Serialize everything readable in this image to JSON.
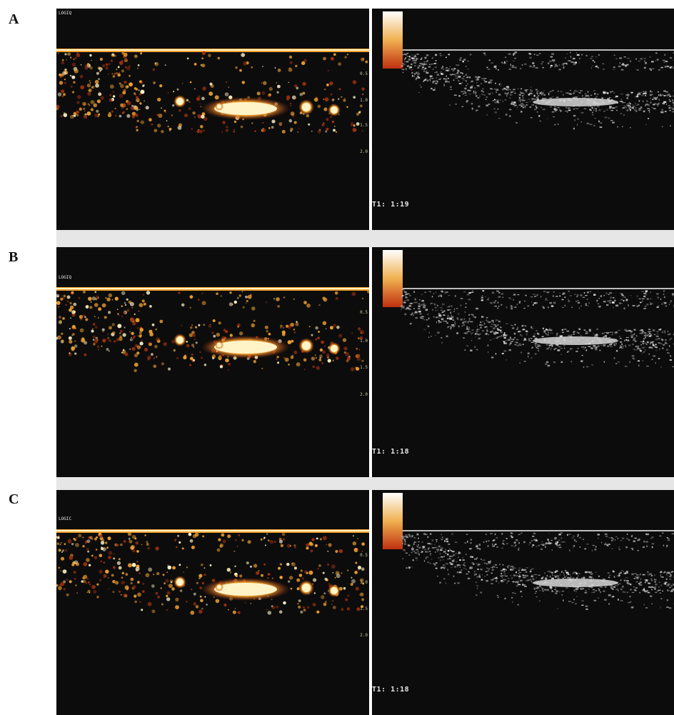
{
  "figure": {
    "panels": [
      {
        "label": "A",
        "logo": "LOGIQ",
        "timer": "T1: 1:19",
        "depth_ticks": [
          "0.5",
          "1.0",
          "1.5",
          "2.0"
        ]
      },
      {
        "label": "B",
        "logo": "LOGIQ",
        "timer": "T1: 1:18",
        "depth_ticks": [
          "0.5",
          "1.0",
          "1.5",
          "2.0"
        ]
      },
      {
        "label": "C",
        "logo": "LOGIC",
        "timer": "T1: 1:18",
        "depth_ticks": [
          "0.5",
          "1.0",
          "1.5",
          "2.0"
        ]
      }
    ]
  },
  "colors": {
    "background": "#0c0c0c",
    "hot_core": "#fff4c8",
    "hot_mid": "#f0a030",
    "hot_edge": "#a03010",
    "gray_echo": "#d8d8d8",
    "separator": "#e6e6e6"
  }
}
